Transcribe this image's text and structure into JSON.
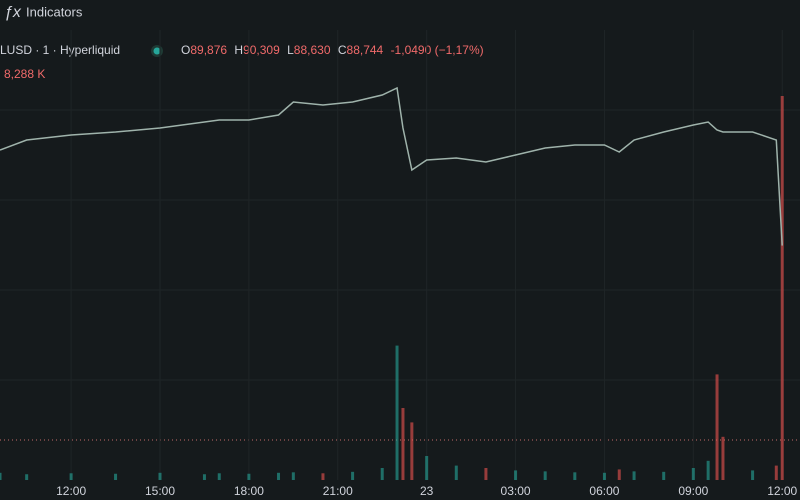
{
  "toolbar": {
    "indicators": "Indicators"
  },
  "legend": {
    "symbol": "LUSD · 1 · Hyperliquid",
    "open_label": "O",
    "open": "89,876",
    "high_label": "H",
    "high": "90,309",
    "low_label": "L",
    "low": "88,630",
    "close_label": "C",
    "close": "88,744",
    "change": "-1,0490 (−1,17%)",
    "volume": "8,288 K"
  },
  "chart_data": {
    "type": "line",
    "color": "#9fb3ab",
    "up_color": "#26a69a",
    "down_color": "#ef5350",
    "x": [
      -2.4,
      -1.5,
      0,
      1.5,
      3,
      4.5,
      5,
      6,
      7,
      7.5,
      8.5,
      9.5,
      10.5,
      11,
      11.2,
      11.5,
      12,
      13,
      14,
      15,
      16,
      17,
      18,
      18.5,
      19,
      20,
      21,
      21.5,
      21.8,
      22,
      23,
      23.8,
      24
    ],
    "values": [
      89700,
      89800,
      89850,
      89880,
      89920,
      89980,
      90000,
      90000,
      90050,
      90180,
      90150,
      90180,
      90250,
      90320,
      89920,
      89500,
      89600,
      89620,
      89580,
      89650,
      89720,
      89750,
      89750,
      89680,
      89800,
      89880,
      89950,
      89980,
      89900,
      89880,
      89880,
      89800,
      88744
    ],
    "volume": [
      1500,
      1200,
      1400,
      1300,
      1500,
      1200,
      1400,
      1300,
      1500,
      1600,
      1400,
      1700,
      2500,
      28000,
      15000,
      12000,
      5000,
      3000,
      2500,
      2000,
      1800,
      1600,
      1500,
      2200,
      1800,
      1700,
      2500,
      4000,
      22000,
      9000,
      2000,
      3000,
      80000
    ],
    "xlim": [
      -2.4,
      24.6
    ],
    "ylim": [
      86400,
      90600
    ],
    "volume_lim": [
      0,
      100000
    ],
    "xticks": [
      {
        "value": 0,
        "label": "12:00"
      },
      {
        "value": 3,
        "label": "15:00"
      },
      {
        "value": 6,
        "label": "18:00"
      },
      {
        "value": 9,
        "label": "21:00"
      },
      {
        "value": 12,
        "label": "23"
      },
      {
        "value": 15,
        "label": "03:00"
      },
      {
        "value": 18,
        "label": "06:00"
      },
      {
        "value": 21,
        "label": "09:00"
      },
      {
        "value": 24,
        "label": "12:00"
      }
    ],
    "grid": true
  }
}
